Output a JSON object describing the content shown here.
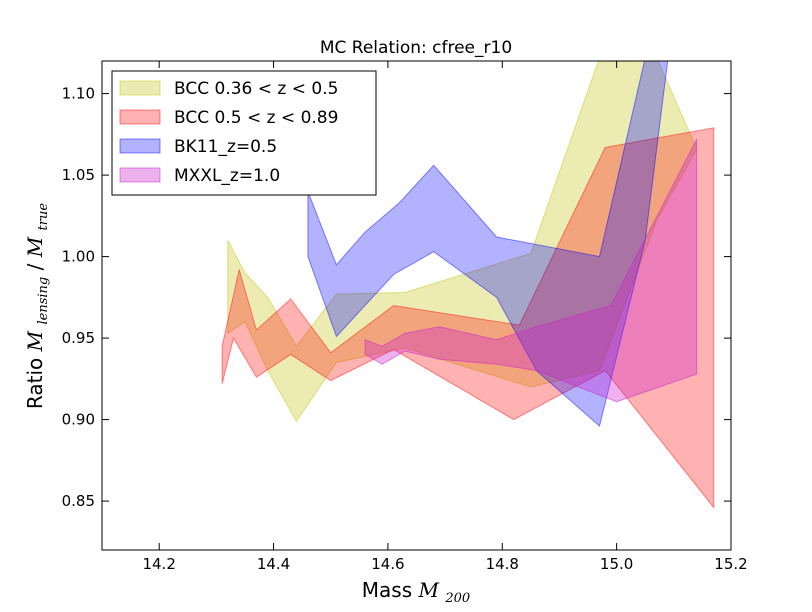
{
  "chart_data": {
    "type": "area",
    "title": "MC Relation: cfree_r10",
    "xlabel": {
      "prefix": "Mass ",
      "math": "M",
      "sub": "200"
    },
    "ylabel": {
      "prefix": "Ratio ",
      "math1": "M",
      "sub1": "lensing",
      "slash": "/",
      "math2": "M",
      "sub2": "true"
    },
    "xlim": [
      14.1,
      15.2
    ],
    "ylim": [
      0.82,
      1.12
    ],
    "xticks": [
      14.2,
      14.4,
      14.6,
      14.8,
      15.0,
      15.2
    ],
    "xtick_labels": [
      "14.2",
      "14.4",
      "14.6",
      "14.8",
      "15.0",
      "15.2"
    ],
    "yticks": [
      0.85,
      0.9,
      0.95,
      1.0,
      1.05,
      1.1
    ],
    "ytick_labels": [
      "0.85",
      "0.90",
      "0.95",
      "1.00",
      "1.05",
      "1.10"
    ],
    "grid": false,
    "legend_placement": "top-left",
    "series": [
      {
        "name": "BCC 0.36 < z < 0.5",
        "color": "#bfbf00",
        "opacity": 0.3,
        "upper": [
          [
            14.32,
            1.01
          ],
          [
            14.35,
            0.99
          ],
          [
            14.39,
            0.975
          ],
          [
            14.44,
            0.945
          ],
          [
            14.51,
            0.977
          ],
          [
            14.63,
            0.978
          ],
          [
            14.85,
            1.002
          ],
          [
            14.97,
            1.122
          ],
          [
            15.07,
            1.122
          ],
          [
            15.14,
            1.066
          ]
        ],
        "lower": [
          [
            14.32,
            0.953
          ],
          [
            14.35,
            0.96
          ],
          [
            14.39,
            0.93
          ],
          [
            14.44,
            0.899
          ],
          [
            14.51,
            0.935
          ],
          [
            14.63,
            0.944
          ],
          [
            14.85,
            0.92
          ],
          [
            14.97,
            0.93
          ],
          [
            15.07,
            1.022
          ],
          [
            15.14,
            1.066
          ]
        ]
      },
      {
        "name": "BCC 0.5 < z < 0.89",
        "color": "#ff0000",
        "opacity": 0.3,
        "upper": [
          [
            14.31,
            0.945
          ],
          [
            14.34,
            0.992
          ],
          [
            14.37,
            0.955
          ],
          [
            14.43,
            0.974
          ],
          [
            14.5,
            0.941
          ],
          [
            14.61,
            0.97
          ],
          [
            14.83,
            0.958
          ],
          [
            14.98,
            1.067
          ],
          [
            15.17,
            1.079
          ]
        ],
        "lower": [
          [
            14.31,
            0.922
          ],
          [
            14.33,
            0.95
          ],
          [
            14.37,
            0.926
          ],
          [
            14.43,
            0.94
          ],
          [
            14.5,
            0.924
          ],
          [
            14.61,
            0.943
          ],
          [
            14.82,
            0.9
          ],
          [
            14.98,
            0.93
          ],
          [
            15.17,
            0.846
          ]
        ]
      },
      {
        "name": "BK11_z=0.5",
        "color": "#0000ff",
        "opacity": 0.3,
        "upper": [
          [
            14.46,
            1.04
          ],
          [
            14.51,
            0.995
          ],
          [
            14.56,
            1.015
          ],
          [
            14.62,
            1.033
          ],
          [
            14.68,
            1.056
          ],
          [
            14.79,
            1.012
          ],
          [
            14.97,
            1.0
          ],
          [
            15.05,
            1.122
          ],
          [
            15.09,
            1.122
          ]
        ],
        "lower": [
          [
            14.46,
            1.0
          ],
          [
            14.51,
            0.951
          ],
          [
            14.61,
            0.989
          ],
          [
            14.68,
            1.003
          ],
          [
            14.79,
            0.975
          ],
          [
            14.86,
            0.93
          ],
          [
            14.97,
            0.896
          ],
          [
            15.05,
            1.01
          ],
          [
            15.09,
            1.122
          ]
        ]
      },
      {
        "name": "MXXL_z=1.0",
        "color": "#cc22cc",
        "opacity": 0.35,
        "upper": [
          [
            14.56,
            0.949
          ],
          [
            14.59,
            0.945
          ],
          [
            14.63,
            0.953
          ],
          [
            14.69,
            0.957
          ],
          [
            14.79,
            0.949
          ],
          [
            14.86,
            0.957
          ],
          [
            14.99,
            0.97
          ],
          [
            15.14,
            1.072
          ]
        ],
        "lower": [
          [
            14.56,
            0.94
          ],
          [
            14.59,
            0.934
          ],
          [
            14.63,
            0.942
          ],
          [
            14.69,
            0.937
          ],
          [
            14.79,
            0.934
          ],
          [
            14.86,
            0.93
          ],
          [
            15.0,
            0.911
          ],
          [
            15.14,
            0.928
          ]
        ]
      }
    ]
  }
}
